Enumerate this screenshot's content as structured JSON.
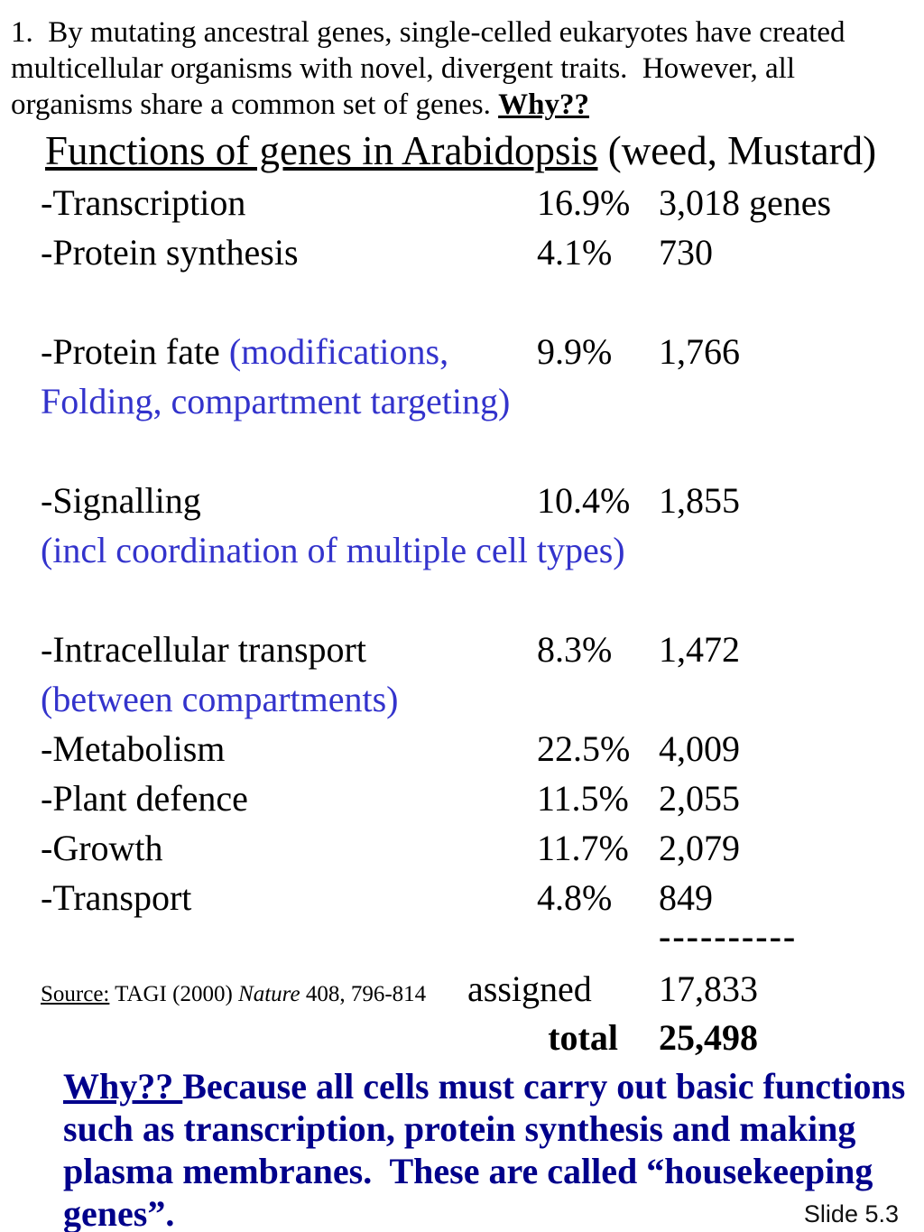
{
  "colors": {
    "background": "#ffffff",
    "text_black": "#000000",
    "annotation_blue": "#3333cc",
    "emphasis_navy": "#00008b"
  },
  "intro": {
    "text": "1.  By mutating ancestral genes, single-celled eukaryotes have created\nmulticellular organisms with novel, divergent traits.  However, all\norganisms share a common set of genes. ",
    "why": "Why??"
  },
  "heading": {
    "underlined": "Functions of genes in Arabidopsis",
    "rest": " (weed, Mustard)"
  },
  "table": {
    "rows": [
      {
        "type": "data",
        "black": "-Transcription",
        "blue": "",
        "pct": "16.9%",
        "count": "3,018 genes"
      },
      {
        "type": "data",
        "black": "-Protein synthesis",
        "blue": "",
        "pct": "4.1%",
        "count": "730"
      },
      {
        "type": "spacer"
      },
      {
        "type": "data",
        "black": "-Protein fate ",
        "blue": "(modifications,",
        "pct": "9.9%",
        "count": "1,766"
      },
      {
        "type": "blue",
        "blue": "Folding, compartment targeting)"
      },
      {
        "type": "spacer"
      },
      {
        "type": "data",
        "black": "-Signalling",
        "blue": "",
        "pct": "10.4%",
        "count": "1,855"
      },
      {
        "type": "blue",
        "blue": "(incl coordination of multiple cell types)"
      },
      {
        "type": "spacer"
      },
      {
        "type": "data",
        "black": "-Intracellular transport",
        "blue": "",
        "pct": "8.3%",
        "count": "1,472"
      },
      {
        "type": "blue",
        "blue": "(between compartments)"
      },
      {
        "type": "data",
        "black": "-Metabolism",
        "blue": "",
        "pct": "22.5%",
        "count": "4,009"
      },
      {
        "type": "data",
        "black": "-Plant defence",
        "blue": "",
        "pct": "11.5%",
        "count": "2,055"
      },
      {
        "type": "data",
        "black": "-Growth",
        "blue": "",
        "pct": "11.7%",
        "count": "2,079"
      },
      {
        "type": "data",
        "black": "-Transport",
        "blue": "",
        "pct": "4.8%",
        "count": "849"
      }
    ]
  },
  "divider": {
    "dashes": "----------"
  },
  "summary": {
    "source_label": "Source:",
    "source_pre": " TAGI (2000) ",
    "source_journal": "Nature",
    "source_post": " 408, 796-814",
    "assigned_label": "assigned",
    "assigned_value": "17,833",
    "total_label": "total",
    "total_value": "25,498"
  },
  "footer": {
    "why_label": "Why?? ",
    "why_text": "Because all cells must carry out basic functions\nsuch as transcription, protein synthesis and making\nplasma membranes.  These are called “housekeeping\ngenes”.",
    "slide_number": "Slide 5.3"
  }
}
